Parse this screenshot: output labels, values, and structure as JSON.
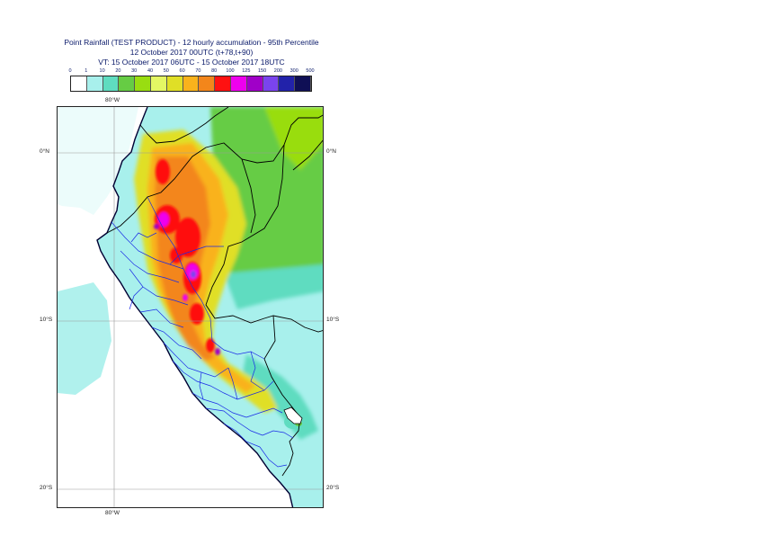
{
  "title": {
    "line1": "Point Rainfall (TEST PRODUCT) - 12 hourly accumulation - 95th Percentile",
    "line2": "12 October 2017 00UTC (t+78,t+90)",
    "line3": "VT: 15 October 2017 06UTC - 15 October 2017 18UTC"
  },
  "legend": {
    "thresholds": [
      "0",
      "1",
      "10",
      "20",
      "30",
      "40",
      "50",
      "60",
      "70",
      "80",
      "100",
      "125",
      "150",
      "200",
      "300",
      "500"
    ],
    "colors": [
      "#ffffff",
      "#a8f0ec",
      "#5fdcc0",
      "#66cc44",
      "#99dd11",
      "#e4f764",
      "#e0df26",
      "#f9b21c",
      "#f3861b",
      "#ff1111",
      "#ee00ee",
      "#a000c8",
      "#7a44ee",
      "#2222aa",
      "#0f0f55"
    ]
  },
  "axes": {
    "lon_top": "80°W",
    "lon_bottom": "80°W",
    "lat_0_left": "0°N",
    "lat_0_right": "0°N",
    "lat_10_left": "10°S",
    "lat_10_right": "10°S",
    "lat_20_left": "20°S",
    "lat_20_right": "20°S"
  }
}
